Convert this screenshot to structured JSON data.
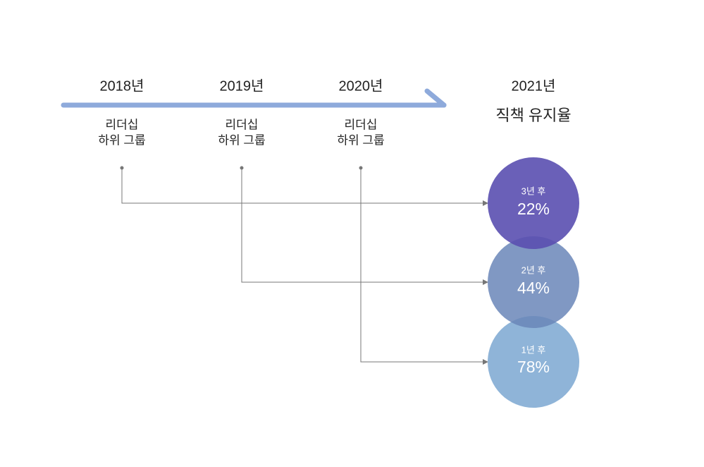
{
  "timeline": [
    {
      "year": "2018년",
      "line1": "리더십",
      "line2": "하위 그룹"
    },
    {
      "year": "2019년",
      "line1": "리더십",
      "line2": "하위 그룹"
    },
    {
      "year": "2020년",
      "line1": "리더십",
      "line2": "하위 그룹"
    }
  ],
  "target": {
    "year": "2021년",
    "title": "직책 유지율"
  },
  "circles": [
    {
      "period": "3년 후",
      "value": "22%"
    },
    {
      "period": "2년 후",
      "value": "44%"
    },
    {
      "period": "1년 후",
      "value": "78%"
    }
  ]
}
